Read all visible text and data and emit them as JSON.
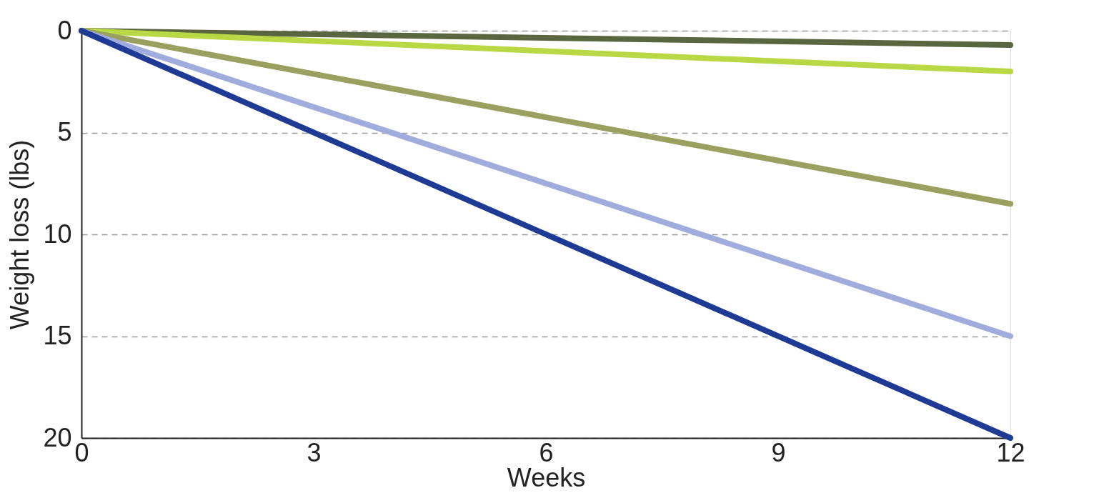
{
  "chart_data": {
    "type": "line",
    "xlabel": "Weeks",
    "ylabel": "Weight loss (lbs)",
    "x": [
      0,
      12
    ],
    "series": [
      {
        "color": "#5a6640",
        "values": [
          0,
          0.7
        ]
      },
      {
        "color": "#b8d845",
        "values": [
          0,
          2.0
        ]
      },
      {
        "color": "#9aa060",
        "values": [
          0,
          8.5
        ]
      },
      {
        "color": "#a0acdc",
        "values": [
          0,
          15
        ]
      },
      {
        "color": "#1f3a94",
        "values": [
          0,
          20
        ]
      }
    ],
    "xlim": [
      0,
      12
    ],
    "xticks": [
      0,
      3,
      6,
      9,
      12
    ],
    "ylim": [
      20,
      0
    ],
    "yticks": [
      0,
      5,
      10,
      15,
      20
    ],
    "grid": "y",
    "marker": "none",
    "line_style": "solid"
  }
}
